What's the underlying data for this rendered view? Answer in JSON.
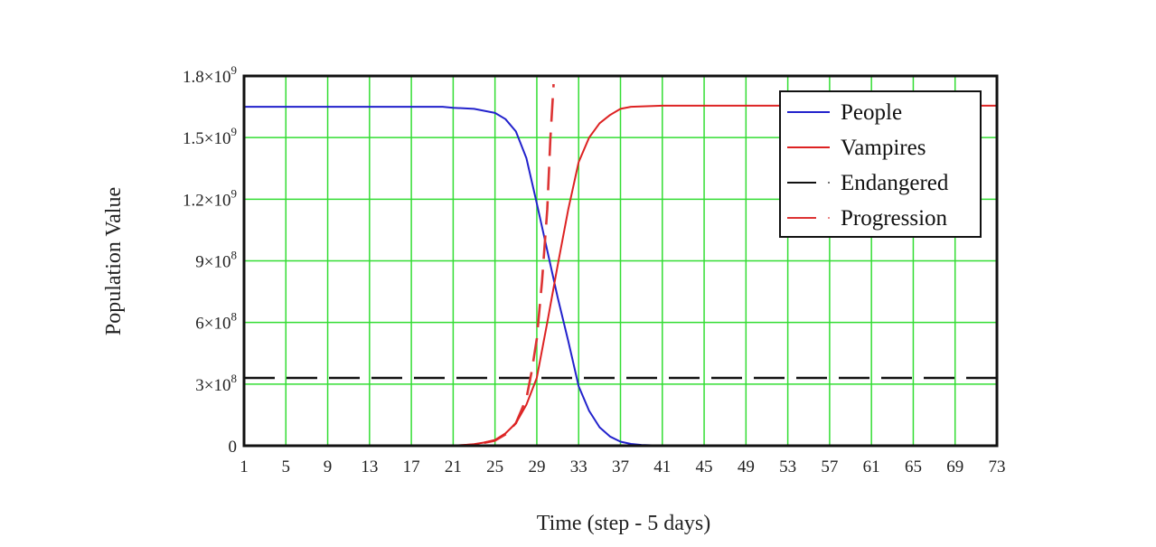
{
  "chart_data": {
    "type": "line",
    "title": "",
    "xlabel": "Time (step - 5 days)",
    "ylabel": "Population Value",
    "xlim": [
      1,
      73
    ],
    "ylim": [
      0,
      1800000000
    ],
    "grid": true,
    "grid_color": "#33dd33",
    "legend_position": "upper right",
    "x_ticks": [
      1,
      5,
      9,
      13,
      17,
      21,
      25,
      29,
      33,
      37,
      41,
      45,
      49,
      53,
      57,
      61,
      65,
      69,
      73
    ],
    "y_ticks": [
      {
        "value": 0,
        "label": "0",
        "exp": ""
      },
      {
        "value": 300000000,
        "label": "3×10",
        "exp": "8"
      },
      {
        "value": 600000000,
        "label": "6×10",
        "exp": "8"
      },
      {
        "value": 900000000,
        "label": "9×10",
        "exp": "8"
      },
      {
        "value": 1200000000,
        "label": "1.2×10",
        "exp": "9"
      },
      {
        "value": 1500000000,
        "label": "1.5×10",
        "exp": "9"
      },
      {
        "value": 1800000000,
        "label": "1.8×10",
        "exp": "9"
      }
    ],
    "series": [
      {
        "name": "People",
        "color": "#2222cc",
        "style": "solid",
        "x": [
          1,
          5,
          9,
          13,
          17,
          20,
          21,
          23,
          25,
          26,
          27,
          28,
          29,
          30,
          31,
          32,
          33,
          34,
          35,
          36,
          37,
          38,
          39,
          40,
          41,
          45,
          73
        ],
        "values": [
          1650000000,
          1650000000,
          1650000000,
          1650000000,
          1650000000,
          1650000000,
          1645000000,
          1640000000,
          1620000000,
          1590000000,
          1530000000,
          1400000000,
          1180000000,
          950000000,
          720000000,
          510000000,
          290000000,
          170000000,
          90000000,
          45000000,
          20000000,
          9000000,
          4000000,
          2000000,
          0,
          0,
          0
        ]
      },
      {
        "name": "Vampires",
        "color": "#dd2222",
        "style": "solid",
        "x": [
          1,
          5,
          9,
          13,
          17,
          21,
          22,
          23,
          24,
          25,
          26,
          27,
          28,
          29,
          30,
          31,
          32,
          33,
          34,
          35,
          36,
          37,
          38,
          41,
          45,
          73
        ],
        "values": [
          0,
          0,
          0,
          0,
          0,
          0,
          3000000,
          8000000,
          16000000,
          28000000,
          60000000,
          110000000,
          200000000,
          330000000,
          600000000,
          880000000,
          1150000000,
          1380000000,
          1500000000,
          1570000000,
          1610000000,
          1640000000,
          1650000000,
          1655000000,
          1655000000,
          1655000000
        ]
      },
      {
        "name": "Endangered",
        "color": "#111111",
        "style": "dashed",
        "x": [
          1,
          73
        ],
        "values": [
          330000000,
          330000000
        ]
      },
      {
        "name": "Progression",
        "color": "#dd3333",
        "style": "dashed",
        "x": [
          1,
          21,
          23,
          25,
          26,
          27,
          28,
          28.5,
          29,
          29.5,
          30,
          30.3,
          30.6
        ],
        "values": [
          0,
          0,
          5000000,
          25000000,
          55000000,
          110000000,
          230000000,
          360000000,
          520000000,
          800000000,
          1150000000,
          1500000000,
          1760000000
        ]
      }
    ]
  }
}
